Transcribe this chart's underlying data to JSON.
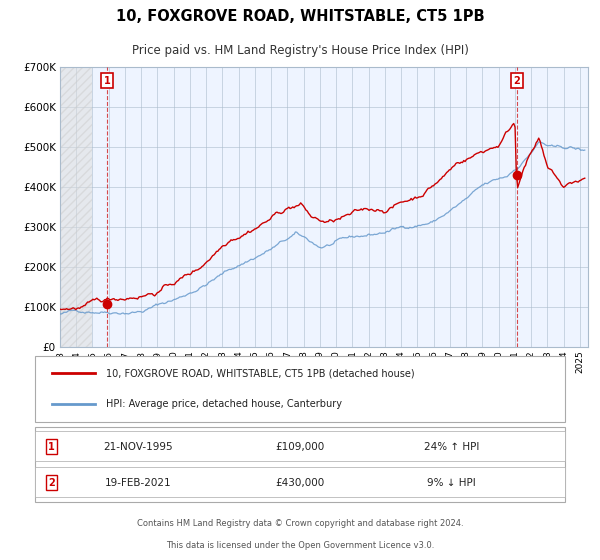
{
  "title": "10, FOXGROVE ROAD, WHITSTABLE, CT5 1PB",
  "subtitle": "Price paid vs. HM Land Registry's House Price Index (HPI)",
  "xlabel": "",
  "ylabel": "",
  "ylim": [
    0,
    700000
  ],
  "yticks": [
    0,
    100000,
    200000,
    300000,
    400000,
    500000,
    600000,
    700000
  ],
  "ytick_labels": [
    "£0",
    "£100K",
    "£200K",
    "£300K",
    "£400K",
    "£500K",
    "£600K",
    "£700K"
  ],
  "xlim_start": 1993.0,
  "xlim_end": 2025.5,
  "hatch_end": 1995.0,
  "point1_x": 1995.9,
  "point1_y": 109000,
  "point1_label": "1",
  "point1_date": "21-NOV-1995",
  "point1_price": "£109,000",
  "point1_hpi": "24% ↑ HPI",
  "point2_x": 2021.12,
  "point2_y": 430000,
  "point2_label": "2",
  "point2_date": "19-FEB-2021",
  "point2_price": "£430,000",
  "point2_hpi": "9% ↓ HPI",
  "red_line_color": "#cc0000",
  "blue_line_color": "#6699cc",
  "hatch_color": "#cccccc",
  "grid_color": "#aabbcc",
  "bg_color": "#ddeeff",
  "plot_bg": "#eef4ff",
  "legend_label_red": "10, FOXGROVE ROAD, WHITSTABLE, CT5 1PB (detached house)",
  "legend_label_blue": "HPI: Average price, detached house, Canterbury",
  "footer": "Contains HM Land Registry data © Crown copyright and database right 2024.\nThis data is licensed under the Open Government Licence v3.0."
}
